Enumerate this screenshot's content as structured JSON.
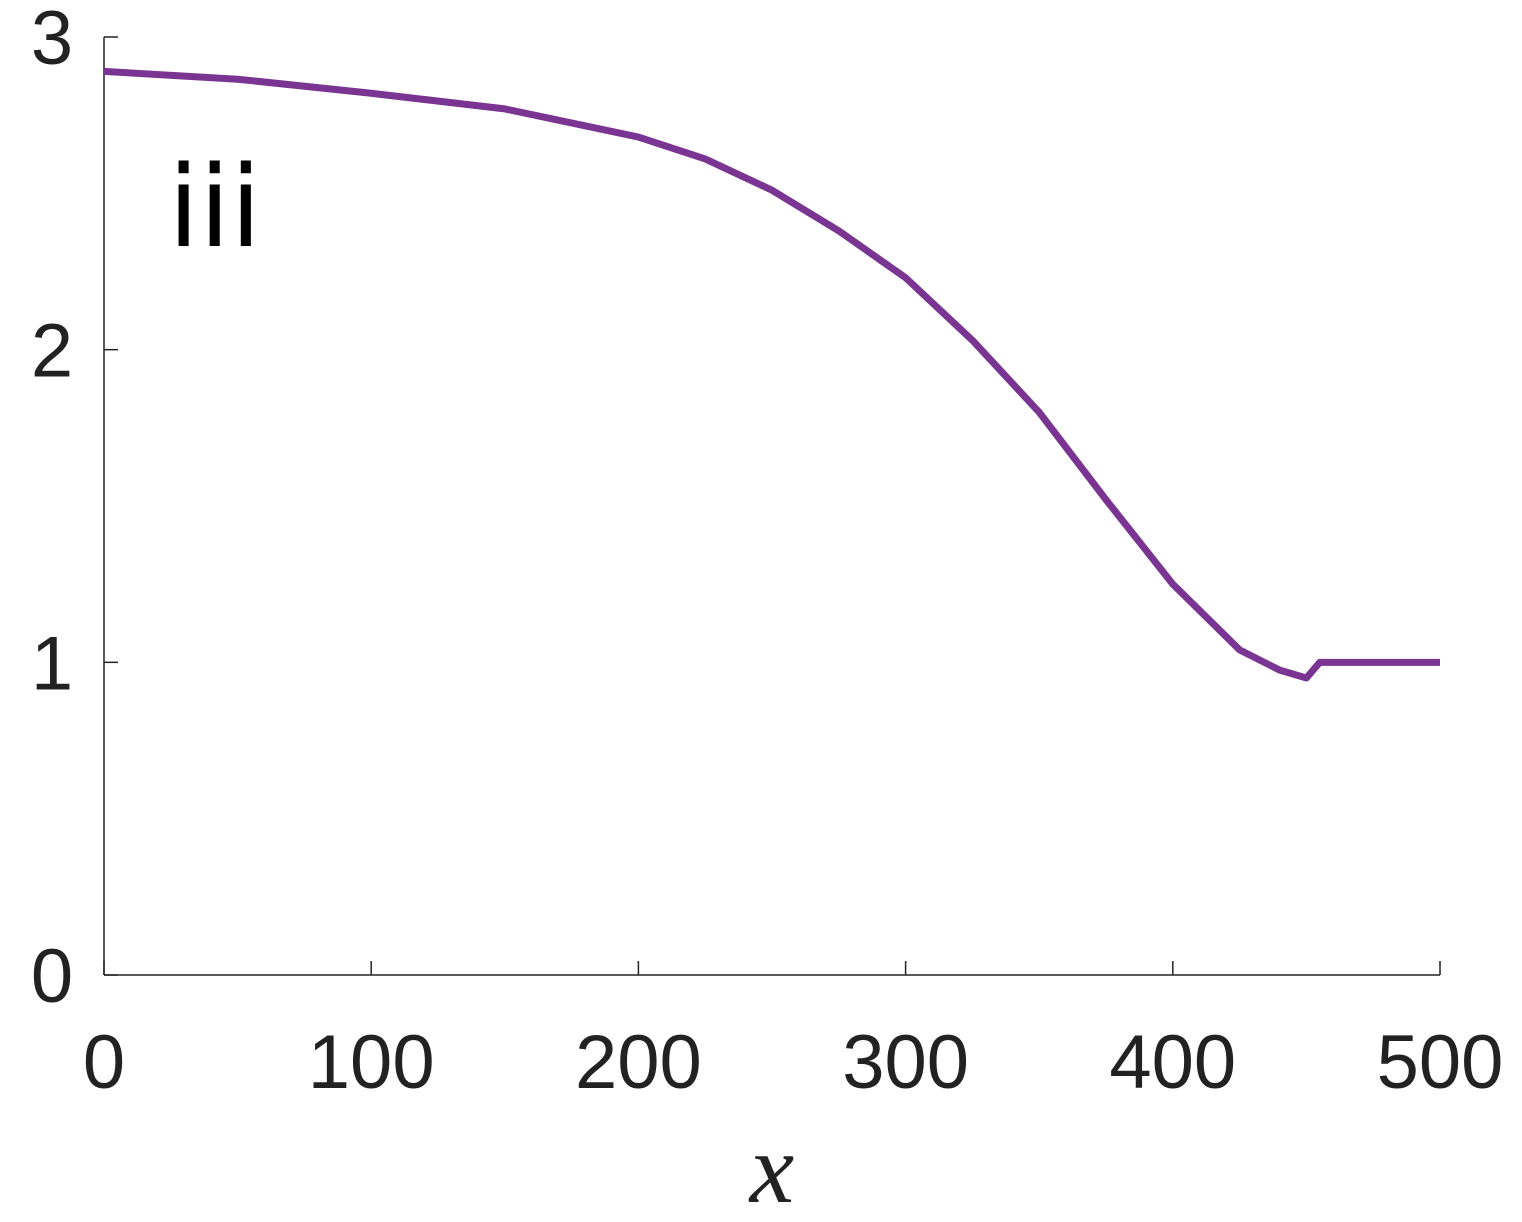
{
  "chart_data": {
    "type": "line",
    "annotation": "iii",
    "x_label": "x",
    "series": [
      {
        "name": null,
        "color": "#7a3592",
        "x": [
          0,
          50,
          100,
          150,
          200,
          225,
          250,
          275,
          300,
          325,
          350,
          375,
          400,
          425,
          440,
          450,
          452,
          455,
          500
        ],
        "values": [
          2.89,
          2.865,
          2.82,
          2.77,
          2.68,
          2.61,
          2.51,
          2.38,
          2.23,
          2.03,
          1.8,
          1.52,
          1.25,
          1.04,
          0.975,
          0.95,
          0.97,
          1.0,
          1.0
        ]
      }
    ],
    "xlim": [
      0,
      500
    ],
    "xticks": [
      0,
      100,
      200,
      300,
      400,
      500
    ],
    "ylim": [
      0,
      3
    ],
    "yticks": [
      0,
      1,
      2,
      3
    ],
    "grid": false
  }
}
